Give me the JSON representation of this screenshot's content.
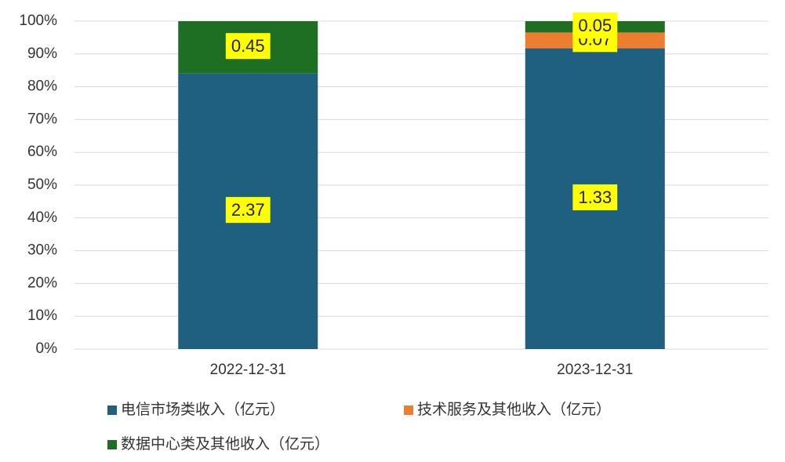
{
  "chart_data": {
    "type": "stacked_bar_percent",
    "categories": [
      "2022-12-31",
      "2023-12-31"
    ],
    "series": [
      {
        "name": "电信市场类收入（亿元）",
        "color": "#1f5f7f",
        "values": [
          2.37,
          1.33
        ]
      },
      {
        "name": "技术服务及其他收入（亿元）",
        "color": "#ed7d31",
        "values": [
          null,
          0.07
        ]
      },
      {
        "name": "数据中心类及其他收入（亿元）",
        "color": "#1e6f23",
        "values": [
          0.45,
          0.05
        ]
      }
    ],
    "ylim": [
      0,
      100
    ],
    "yticks": [
      {
        "value": 0,
        "label": "0%"
      },
      {
        "value": 10,
        "label": "10%"
      },
      {
        "value": 20,
        "label": "20%"
      },
      {
        "value": 30,
        "label": "30%"
      },
      {
        "value": 40,
        "label": "40%"
      },
      {
        "value": 50,
        "label": "50%"
      },
      {
        "value": 60,
        "label": "60%"
      },
      {
        "value": 70,
        "label": "70%"
      },
      {
        "value": 80,
        "label": "80%"
      },
      {
        "value": 90,
        "label": "90%"
      },
      {
        "value": 100,
        "label": "100%"
      }
    ],
    "grid": true,
    "label_background": "#ffff00"
  }
}
